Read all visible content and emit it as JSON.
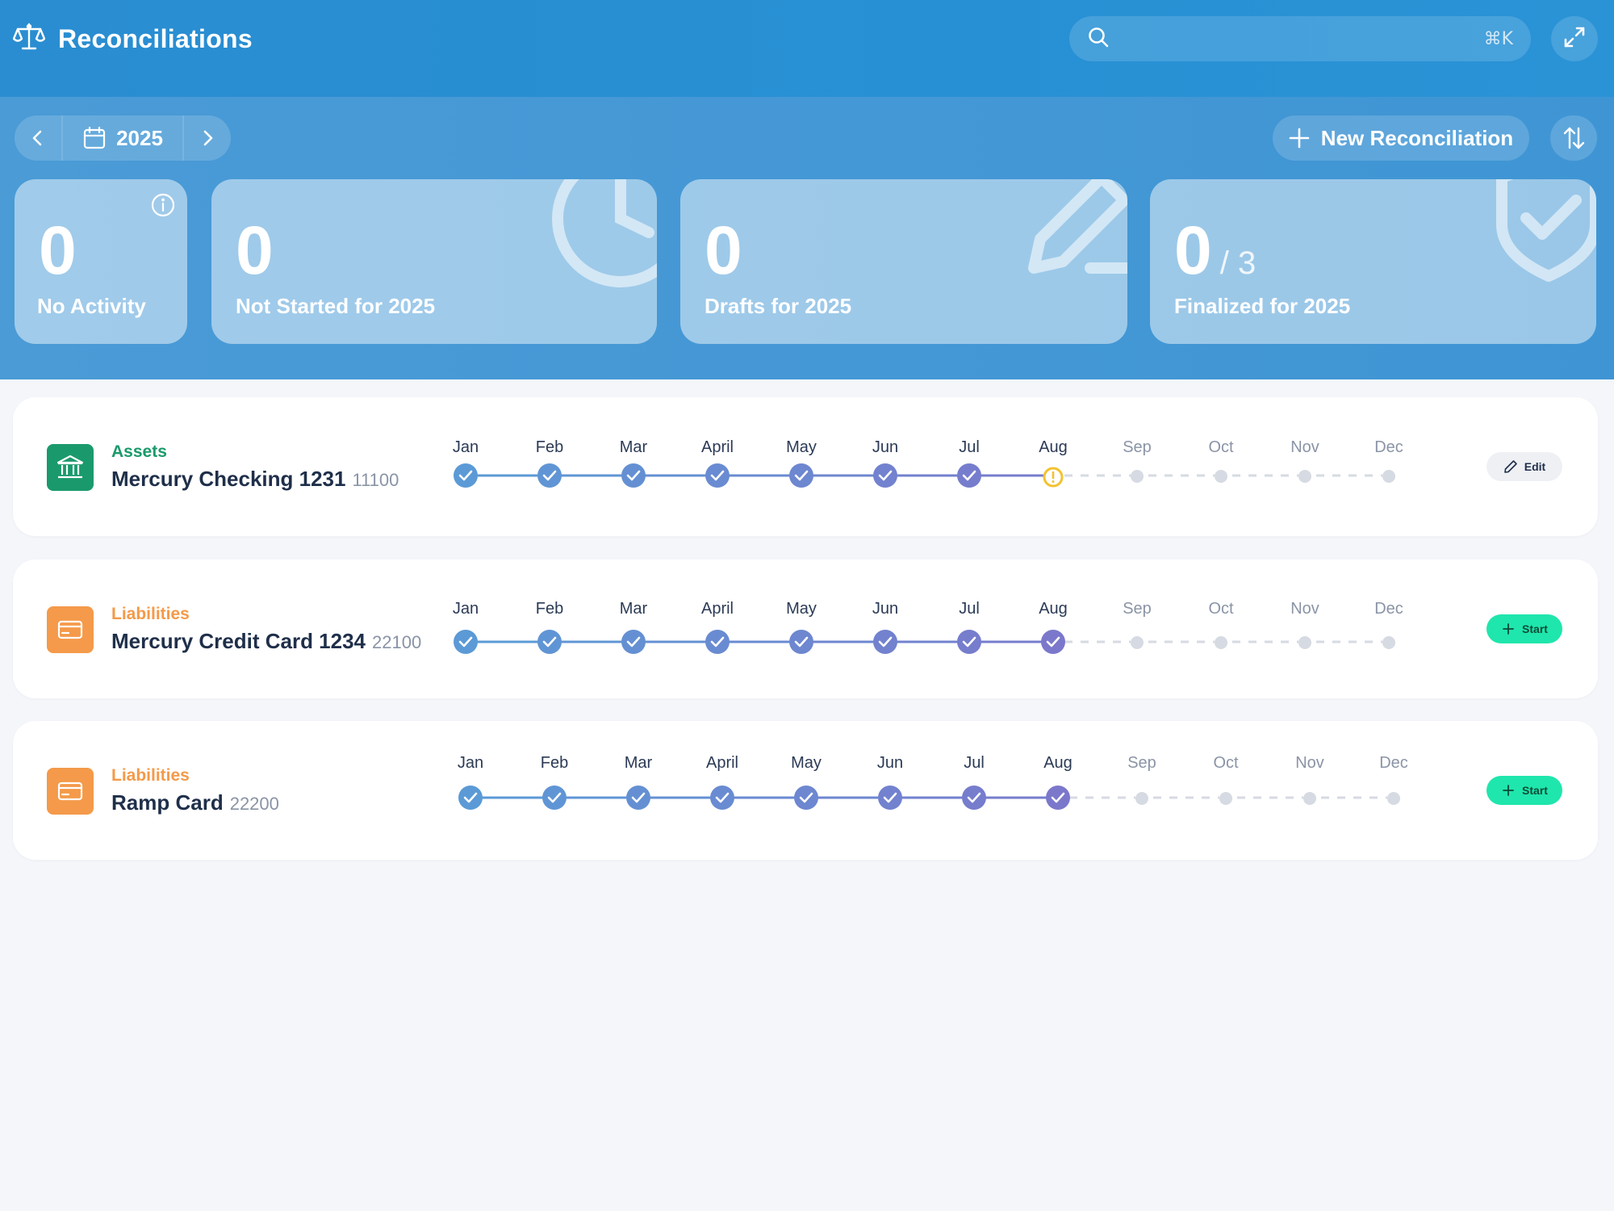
{
  "app": {
    "title": "Reconciliations",
    "search_placeholder": "",
    "search_shortcut": "⌘K"
  },
  "toolbar": {
    "year": "2025",
    "new_reconciliation_label": "New Reconciliation"
  },
  "stats": {
    "no_activity": {
      "value": "0",
      "label": "No Activity"
    },
    "not_started": {
      "value": "0",
      "label": "Not Started for 2025"
    },
    "drafts": {
      "value": "0",
      "label": "Drafts for 2025"
    },
    "finalized": {
      "value": "0",
      "total": "/ 3",
      "label": "Finalized for 2025"
    }
  },
  "months": [
    "Jan",
    "Feb",
    "Mar",
    "April",
    "May",
    "Jun",
    "Jul",
    "Aug",
    "Sep",
    "Oct",
    "Nov",
    "Dec"
  ],
  "colors": {
    "assets": "#1a9a6c",
    "liabilities": "#f49a4a",
    "done_start": "#5b9ad6",
    "done_end": "#7b78cc",
    "warning": "#f2c230",
    "pending": "#d6dae2",
    "start_button": "#1fe6ac"
  },
  "accounts": [
    {
      "category": "Assets",
      "name": "Mercury Checking 1231",
      "code": "11100",
      "icon": "bank-icon",
      "statuses": [
        "done",
        "done",
        "done",
        "done",
        "done",
        "done",
        "done",
        "warning",
        "pending",
        "pending",
        "pending",
        "pending"
      ],
      "action": "Edit"
    },
    {
      "category": "Liabilities",
      "name": "Mercury Credit Card 1234",
      "code": "22100",
      "icon": "credit-card-icon",
      "statuses": [
        "done",
        "done",
        "done",
        "done",
        "done",
        "done",
        "done",
        "done",
        "pending",
        "pending",
        "pending",
        "pending"
      ],
      "action": "Start"
    },
    {
      "category": "Liabilities",
      "name": "Ramp Card",
      "code": "22200",
      "icon": "credit-card-icon",
      "statuses": [
        "done",
        "done",
        "done",
        "done",
        "done",
        "done",
        "done",
        "done",
        "pending",
        "pending",
        "pending",
        "pending"
      ],
      "action": "Start"
    }
  ]
}
